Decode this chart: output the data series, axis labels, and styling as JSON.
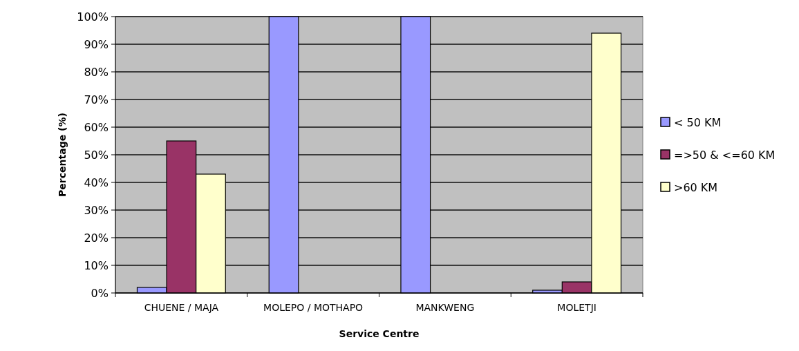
{
  "chart_data": {
    "type": "bar",
    "xlabel": "Service Centre",
    "ylabel": "Percentage (%)",
    "categories": [
      "CHUENE / MAJA",
      "MOLEPO / MOTHAPO",
      "MANKWENG",
      "MOLETJI"
    ],
    "series": [
      {
        "name": "< 50 KM",
        "color": "#9999ff",
        "values": [
          2,
          100,
          100,
          1
        ]
      },
      {
        "name": "=>50 & <=60 KM",
        "color": "#993366",
        "values": [
          55,
          0,
          0,
          4
        ]
      },
      {
        "name": ">60 KM",
        "color": "#ffffcc",
        "values": [
          43,
          0,
          0,
          94
        ]
      }
    ],
    "ylim": [
      0,
      100
    ],
    "yticks": [
      {
        "value": 0,
        "label": "0%"
      },
      {
        "value": 10,
        "label": "10%"
      },
      {
        "value": 20,
        "label": "20%"
      },
      {
        "value": 30,
        "label": "30%"
      },
      {
        "value": 40,
        "label": "40%"
      },
      {
        "value": 50,
        "label": "50%"
      },
      {
        "value": 60,
        "label": "60%"
      },
      {
        "value": 70,
        "label": "70%"
      },
      {
        "value": 80,
        "label": "80%"
      },
      {
        "value": 90,
        "label": "90%"
      },
      {
        "value": 100,
        "label": "100%"
      }
    ],
    "grid": true,
    "legend": "right"
  }
}
